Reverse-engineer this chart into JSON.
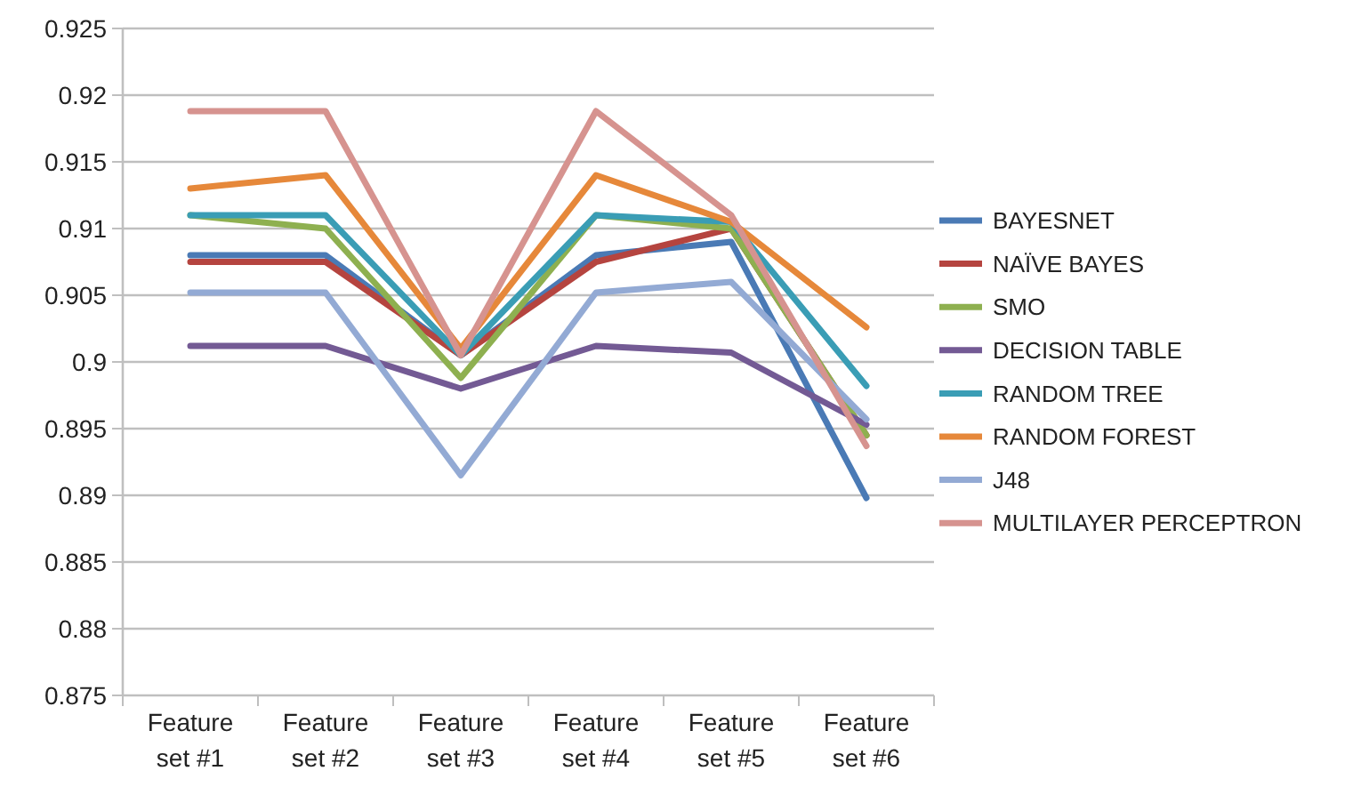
{
  "chart_data": {
    "type": "line",
    "categories": [
      "Feature set #1",
      "Feature set #2",
      "Feature set #3",
      "Feature set #4",
      "Feature set #5",
      "Feature set #6"
    ],
    "ylim": [
      0.875,
      0.925
    ],
    "yticks": [
      {
        "value": 0.875,
        "label": "0.875"
      },
      {
        "value": 0.88,
        "label": "0.88"
      },
      {
        "value": 0.885,
        "label": "0.885"
      },
      {
        "value": 0.89,
        "label": "0.89"
      },
      {
        "value": 0.895,
        "label": "0.895"
      },
      {
        "value": 0.9,
        "label": "0.9"
      },
      {
        "value": 0.905,
        "label": "0.905"
      },
      {
        "value": 0.91,
        "label": "0.91"
      },
      {
        "value": 0.915,
        "label": "0.915"
      },
      {
        "value": 0.92,
        "label": "0.92"
      },
      {
        "value": 0.925,
        "label": "0.925"
      }
    ],
    "grid": "y",
    "legend": "right",
    "marker": "none",
    "line_style": "solid",
    "series": [
      {
        "name": "BAYESNET",
        "color": "#4a7ab5",
        "values": [
          0.908,
          0.908,
          0.9005,
          0.908,
          0.909,
          0.8898
        ]
      },
      {
        "name": "NAÏVE BAYES",
        "color": "#b5443f",
        "values": [
          0.9075,
          0.9075,
          0.9005,
          0.9075,
          0.91,
          0.8945
        ]
      },
      {
        "name": "SMO",
        "color": "#8eb050",
        "values": [
          0.911,
          0.91,
          0.8988,
          0.911,
          0.91,
          0.8945
        ]
      },
      {
        "name": "DECISION TABLE",
        "color": "#735a94",
        "values": [
          0.9012,
          0.9012,
          0.898,
          0.9012,
          0.9007,
          0.8953
        ]
      },
      {
        "name": "RANDOM TREE",
        "color": "#3a9db5",
        "values": [
          0.911,
          0.911,
          0.9005,
          0.911,
          0.9105,
          0.8982
        ]
      },
      {
        "name": "RANDOM FOREST",
        "color": "#e6883a",
        "values": [
          0.913,
          0.914,
          0.901,
          0.914,
          0.9105,
          0.9026
        ]
      },
      {
        "name": "J48",
        "color": "#93aad4",
        "values": [
          0.9052,
          0.9052,
          0.8915,
          0.9052,
          0.906,
          0.8957
        ]
      },
      {
        "name": "MULTILAYER PERCEPTRON",
        "color": "#d6938f",
        "values": [
          0.9188,
          0.9188,
          0.9005,
          0.9188,
          0.911,
          0.8937
        ]
      }
    ]
  }
}
